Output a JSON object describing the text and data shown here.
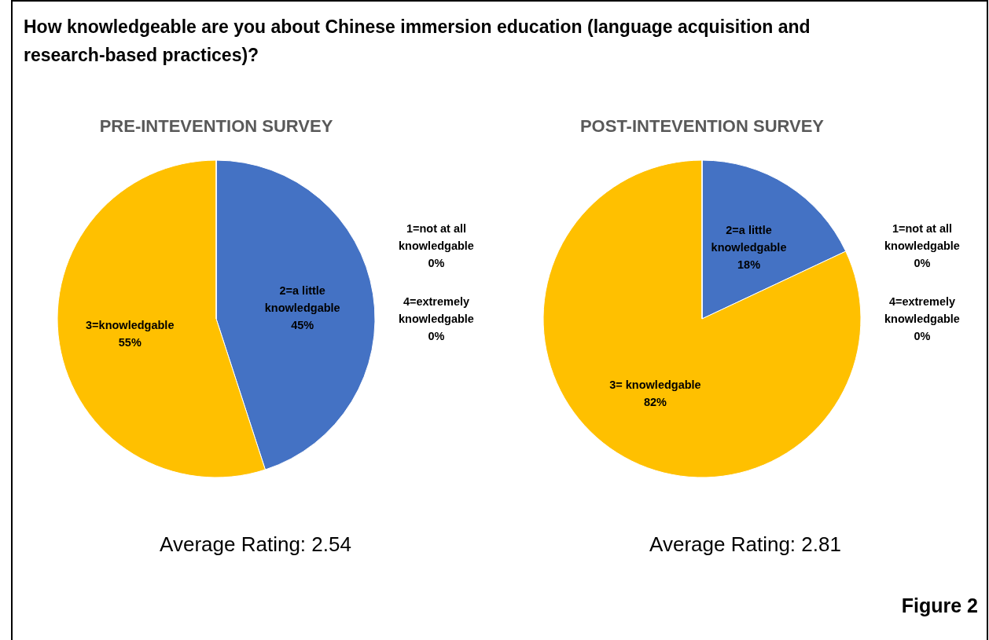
{
  "chart_data": [
    {
      "type": "other",
      "title": "How knowledgeable are you about Chinese immersion education (language acquisition and research-based practices)?",
      "annotations": [
        "Figure 2"
      ]
    },
    {
      "type": "pie",
      "title": "PRE-INTEVENTION SURVEY",
      "categories": [
        "1=not at all knowledgable",
        "2=a little knowledgable",
        "3=knowledgable",
        "4=extremely knowledgable"
      ],
      "values": [
        0,
        45,
        55,
        0
      ],
      "value_labels": [
        "0%",
        "45%",
        "55%",
        "0%"
      ],
      "colors": [
        "#ed7d31",
        "#4472c4",
        "#ffc000",
        "#a5a5a5"
      ],
      "annotations": [
        "Average Rating: 2.54"
      ]
    },
    {
      "type": "pie",
      "title": "POST-INTEVENTION SURVEY",
      "categories": [
        "1=not at all knowledgable",
        "2=a little knowledgable",
        "3= knowledgable",
        "4=extremely knowledgable"
      ],
      "values": [
        0,
        18,
        82,
        0
      ],
      "value_labels": [
        "0%",
        "18%",
        "82%",
        "0%"
      ],
      "colors": [
        "#ed7d31",
        "#4472c4",
        "#ffc000",
        "#a5a5a5"
      ],
      "annotations": [
        "Average Rating: 2.81"
      ]
    }
  ]
}
